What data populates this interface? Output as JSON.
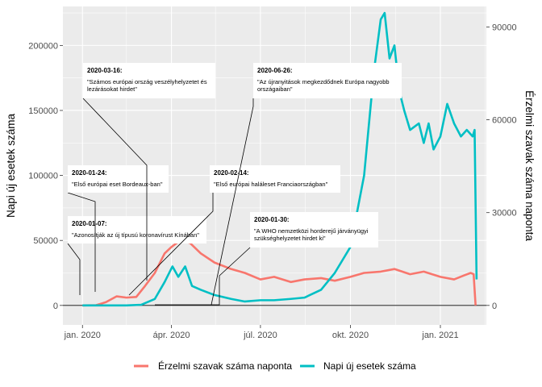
{
  "chart_data": {
    "type": "line",
    "title": "",
    "ylabel_left": "Napi új esetek száma",
    "ylabel_right": "Érzelmi szavak száma naponta",
    "xlabel": "",
    "x_ticks": [
      {
        "date": "2020-01-01",
        "label": "jan. 2020"
      },
      {
        "date": "2020-04-01",
        "label": "ápr. 2020"
      },
      {
        "date": "2020-07-01",
        "label": "júl. 2020"
      },
      {
        "date": "2020-10-01",
        "label": "okt. 2020"
      },
      {
        "date": "2021-01-01",
        "label": "jan. 2021"
      }
    ],
    "xlim": [
      "2019-12-12",
      "2021-02-17"
    ],
    "ylim_left": [
      -15000,
      230000
    ],
    "yticks_left": [
      {
        "value": 0,
        "label": "0"
      },
      {
        "value": 50000,
        "label": "50000"
      },
      {
        "value": 100000,
        "label": "100000"
      },
      {
        "value": 150000,
        "label": "150000"
      },
      {
        "value": 200000,
        "label": "200000"
      }
    ],
    "yticks_right": [
      {
        "value": 0,
        "label": "0"
      },
      {
        "value": 30000,
        "label": "30000"
      },
      {
        "value": 60000,
        "label": "60000"
      },
      {
        "value": 90000,
        "label": "90000"
      }
    ],
    "right_axis_scale": 2.38,
    "grid": true,
    "legend_position": "bottom",
    "series": [
      {
        "name": "Érzelmi szavak száma naponta",
        "color": "#F8766D",
        "axis": "left",
        "points": [
          [
            "2020-01-01",
            0
          ],
          [
            "2020-01-15",
            200
          ],
          [
            "2020-01-25",
            2500
          ],
          [
            "2020-02-05",
            7000
          ],
          [
            "2020-02-15",
            6000
          ],
          [
            "2020-02-25",
            6500
          ],
          [
            "2020-03-05",
            15000
          ],
          [
            "2020-03-15",
            25000
          ],
          [
            "2020-03-25",
            40000
          ],
          [
            "2020-04-01",
            45000
          ],
          [
            "2020-04-10",
            50000
          ],
          [
            "2020-04-20",
            48000
          ],
          [
            "2020-05-01",
            40000
          ],
          [
            "2020-05-15",
            33000
          ],
          [
            "2020-06-01",
            28000
          ],
          [
            "2020-06-15",
            25000
          ],
          [
            "2020-07-01",
            20000
          ],
          [
            "2020-07-15",
            22000
          ],
          [
            "2020-08-01",
            18000
          ],
          [
            "2020-08-15",
            20000
          ],
          [
            "2020-09-01",
            21000
          ],
          [
            "2020-09-15",
            19000
          ],
          [
            "2020-10-01",
            22000
          ],
          [
            "2020-10-15",
            25000
          ],
          [
            "2020-11-01",
            26000
          ],
          [
            "2020-11-15",
            28000
          ],
          [
            "2020-12-01",
            24000
          ],
          [
            "2020-12-15",
            26000
          ],
          [
            "2021-01-01",
            22000
          ],
          [
            "2021-01-15",
            20000
          ],
          [
            "2021-01-25",
            23000
          ],
          [
            "2021-02-01",
            25000
          ],
          [
            "2021-02-04",
            24000
          ],
          [
            "2021-02-06",
            0
          ]
        ]
      },
      {
        "name": "Napi új esetek száma",
        "color": "#00BFC4",
        "axis": "left",
        "points": [
          [
            "2020-01-01",
            0
          ],
          [
            "2020-02-15",
            0
          ],
          [
            "2020-03-01",
            500
          ],
          [
            "2020-03-15",
            5000
          ],
          [
            "2020-03-25",
            18000
          ],
          [
            "2020-04-02",
            30000
          ],
          [
            "2020-04-08",
            22000
          ],
          [
            "2020-04-15",
            30000
          ],
          [
            "2020-04-22",
            15000
          ],
          [
            "2020-05-01",
            12000
          ],
          [
            "2020-05-15",
            8000
          ],
          [
            "2020-06-01",
            5000
          ],
          [
            "2020-06-15",
            3000
          ],
          [
            "2020-07-01",
            4000
          ],
          [
            "2020-07-15",
            4000
          ],
          [
            "2020-08-01",
            5000
          ],
          [
            "2020-08-15",
            6000
          ],
          [
            "2020-09-01",
            12000
          ],
          [
            "2020-09-15",
            25000
          ],
          [
            "2020-10-01",
            45000
          ],
          [
            "2020-10-15",
            100000
          ],
          [
            "2020-10-25",
            180000
          ],
          [
            "2020-11-01",
            220000
          ],
          [
            "2020-11-05",
            225000
          ],
          [
            "2020-11-10",
            190000
          ],
          [
            "2020-11-15",
            200000
          ],
          [
            "2020-11-20",
            165000
          ],
          [
            "2020-11-25",
            150000
          ],
          [
            "2020-12-01",
            135000
          ],
          [
            "2020-12-10",
            140000
          ],
          [
            "2020-12-15",
            125000
          ],
          [
            "2020-12-20",
            140000
          ],
          [
            "2020-12-25",
            120000
          ],
          [
            "2021-01-01",
            130000
          ],
          [
            "2021-01-08",
            155000
          ],
          [
            "2021-01-15",
            140000
          ],
          [
            "2021-01-22",
            130000
          ],
          [
            "2021-01-28",
            135000
          ],
          [
            "2021-02-03",
            130000
          ],
          [
            "2021-02-05",
            135000
          ],
          [
            "2021-02-07",
            20000
          ]
        ]
      }
    ],
    "annotations": [
      {
        "date_label": "2020-01-07:",
        "text": [
          "\"Azonosítják az új típusú koronavírust Kínában\""
        ]
      },
      {
        "date_label": "2020-01-24:",
        "text": [
          "\"Első európai eset Bordeaux-ban\""
        ]
      },
      {
        "date_label": "2020-03-16:",
        "text": [
          "\"Számos európai ország veszélyhelyzetet és",
          "lezárásokat hirdet\""
        ]
      },
      {
        "date_label": "2020-02-14:",
        "text": [
          "\"Első európai haláleset Franciaországban\""
        ]
      },
      {
        "date_label": "2020-06-26:",
        "text": [
          "\"Az újranyitások megkezdődnek Európa nagyobb",
          "országaiban\""
        ]
      },
      {
        "date_label": "2020-01-30:",
        "text": [
          "\"A WHO nemzetközi horderejű járványügyi",
          "szükséghelyzetet hirdet ki\""
        ]
      }
    ]
  }
}
